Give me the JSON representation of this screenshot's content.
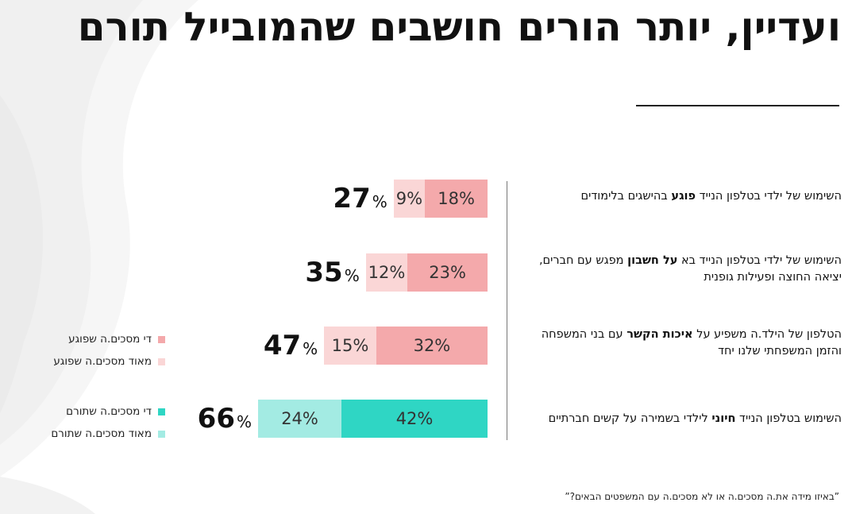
{
  "title": "ועדיין, יותר הורים חושבים שהמובייל תורם",
  "footnote": "”באיזו מידה את.ה מסכים.ה או לא מסכים.ה עם המשפטים הבאים?”",
  "colors": {
    "harm_somewhat": "#f4a9ab",
    "harm_very": "#fad6d6",
    "help_somewhat": "#2fd6c4",
    "help_very": "#a3ebe3"
  },
  "statements": [
    {
      "pre": "השימוש של ילדי בטלפון הנייד ",
      "bold": "פוגע",
      "post": " בהישגים בלימודים"
    },
    {
      "pre": "השימוש של ילדי בטלפון הנייד בא ",
      "bold": "על חשבון",
      "post": " מפגש עם חברים, יציאה החוצה ופעילות גופנית"
    },
    {
      "pre": "הטלפון של הילד.ה משפיע על ",
      "bold": "איכות הקשר",
      "post": " עם בני המשפחה והזמן המשפחתי שלנו יחד"
    },
    {
      "pre": "השימוש בטלפון הנייד ",
      "bold": "חיוני",
      "post": " לילדי בשמירה על קשים חברתיים"
    }
  ],
  "legend": [
    {
      "label": "די מסכים.ה שפוגע",
      "color": "#f4a9ab"
    },
    {
      "label": "מאוד מסכים.ה שפוגע",
      "color": "#fad6d6"
    },
    {
      "label": "די מסכים.ה שתורם",
      "color": "#2fd6c4"
    },
    {
      "label": "מאוד מסכים.ה שתורם",
      "color": "#a3ebe3"
    }
  ],
  "chart_data": {
    "type": "bar",
    "orientation": "horizontal-stacked",
    "categories": [
      "השימוש של ילדי בטלפון הנייד פוגע בהישגים בלימודים",
      "השימוש של ילדי בטלפון הנייד בא על חשבון מפגש עם חברים, יציאה החוצה ופעילות גופנית",
      "הטלפון של הילד.ה משפיע על איכות הקשר עם בני המשפחה והזמן המשפחתי שלנו יחד",
      "השימוש בטלפון הנייד חיוני לילדי בשמירה על קשים חברתיים"
    ],
    "series": [
      {
        "name": "די מסכים.ה",
        "values": [
          18,
          23,
          32,
          42
        ]
      },
      {
        "name": "מאוד מסכים.ה",
        "values": [
          9,
          12,
          15,
          24
        ]
      }
    ],
    "value_labels": [
      [
        "18%",
        "9%"
      ],
      [
        "23%",
        "12%"
      ],
      [
        "32%",
        "15%"
      ],
      [
        "42%",
        "24%"
      ]
    ],
    "totals": [
      "27",
      "35",
      "47",
      "66"
    ],
    "total_unit": "%"
  }
}
